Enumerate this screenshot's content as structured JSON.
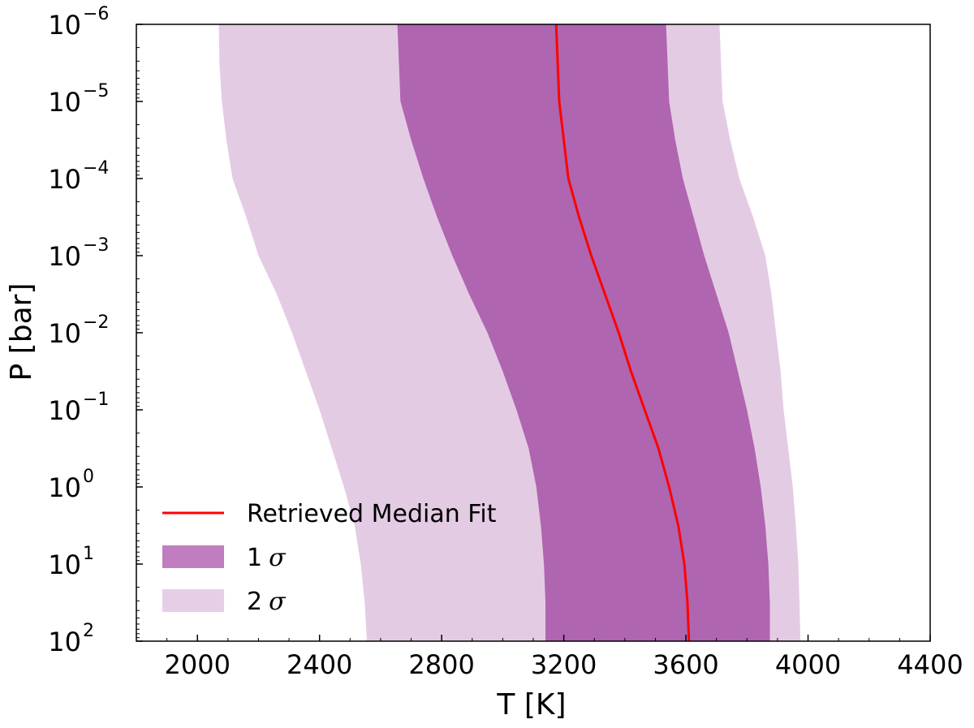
{
  "chart_data": {
    "type": "area",
    "xlabel": "T [K]",
    "ylabel": "P [bar]",
    "xlim": [
      1800,
      4400
    ],
    "x_scale": "linear",
    "ylim": [
      1e-06,
      100
    ],
    "y_scale": "log",
    "y_inverted": true,
    "grid": false,
    "x_ticks": [
      2000,
      2400,
      2800,
      3200,
      3600,
      4000,
      4400
    ],
    "x_tick_labels": [
      "2000",
      "2400",
      "2800",
      "3200",
      "3600",
      "4000",
      "4400"
    ],
    "y_ticks": [
      -6,
      -5,
      -4,
      -3,
      -2,
      -1,
      0,
      1,
      2
    ],
    "y_tick_bases": [
      "10",
      "10",
      "10",
      "10",
      "10",
      "10",
      "10",
      "10",
      "10"
    ],
    "y_tick_exponents": [
      "−6",
      "−5",
      "−4",
      "−3",
      "−2",
      "−1",
      "0",
      "1",
      "2"
    ],
    "pressure_log10": [
      -6,
      -5.5,
      -5,
      -4.5,
      -4,
      -3.5,
      -3,
      -2.5,
      -2,
      -1.5,
      -1,
      -0.5,
      0,
      0.5,
      1,
      1.5,
      2
    ],
    "series": [
      {
        "name": "Retrieved Median Fit",
        "kind": "line",
        "color": "#ff0000",
        "temperature": [
          3175,
          3180,
          3185,
          3200,
          3215,
          3250,
          3290,
          3335,
          3380,
          3420,
          3465,
          3510,
          3545,
          3575,
          3595,
          3605,
          3610
        ]
      },
      {
        "name": "1σ",
        "kind": "band",
        "color": "#b065b0",
        "lower": [
          2655,
          2660,
          2665,
          2700,
          2740,
          2785,
          2835,
          2890,
          2950,
          3000,
          3045,
          3085,
          3110,
          3125,
          3135,
          3140,
          3140
        ],
        "upper": [
          3535,
          3540,
          3545,
          3565,
          3590,
          3625,
          3660,
          3700,
          3740,
          3770,
          3800,
          3825,
          3845,
          3860,
          3870,
          3875,
          3875
        ]
      },
      {
        "name": "2σ",
        "kind": "band",
        "color": "#e4cbe4",
        "lower": [
          2070,
          2072,
          2080,
          2095,
          2115,
          2160,
          2200,
          2260,
          2310,
          2355,
          2400,
          2440,
          2480,
          2515,
          2535,
          2548,
          2555
        ],
        "upper": [
          3710,
          3715,
          3720,
          3745,
          3775,
          3820,
          3860,
          3880,
          3895,
          3910,
          3920,
          3935,
          3950,
          3960,
          3968,
          3972,
          3975
        ]
      }
    ],
    "legend": {
      "position": "lower-left",
      "entries": [
        {
          "label": "Retrieved Median Fit",
          "style": "line",
          "color": "#ff0000"
        },
        {
          "label_prefix": "1",
          "label_symbol": "σ",
          "style": "patch",
          "color": "#c07ec0"
        },
        {
          "label_prefix": "2",
          "label_symbol": "σ",
          "style": "patch",
          "color": "#e6cfe6"
        }
      ]
    }
  }
}
